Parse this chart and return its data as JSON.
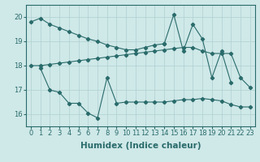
{
  "line1_x": [
    0,
    1,
    2,
    3,
    4,
    5,
    6,
    7,
    8,
    9,
    10,
    11,
    12,
    13,
    14
  ],
  "line1_y": [
    19.8,
    19.95,
    19.7,
    19.55,
    19.4,
    19.25,
    19.1,
    19.0,
    18.85,
    18.75,
    18.65,
    18.65,
    18.75,
    18.85,
    18.9
  ],
  "line2_x": [
    0,
    1,
    2,
    3,
    4,
    5,
    6,
    7,
    8,
    9,
    10,
    11,
    12,
    13,
    14,
    15,
    16,
    17,
    18,
    19,
    20,
    21,
    22,
    23
  ],
  "line2_y": [
    18.0,
    18.0,
    18.05,
    18.1,
    18.15,
    18.2,
    18.25,
    18.3,
    18.35,
    18.4,
    18.45,
    18.5,
    18.55,
    18.6,
    18.65,
    18.7,
    18.75,
    18.75,
    18.6,
    18.5,
    18.5,
    18.5,
    17.5,
    17.1
  ],
  "line3_x": [
    1,
    2,
    3,
    4,
    5,
    6,
    7,
    8,
    9,
    10,
    11,
    12,
    13,
    14,
    15,
    16,
    17,
    18,
    19,
    20,
    21,
    22,
    23
  ],
  "line3_y": [
    17.9,
    17.0,
    16.9,
    16.45,
    16.45,
    16.05,
    15.85,
    17.5,
    16.45,
    16.5,
    16.5,
    16.5,
    16.5,
    16.5,
    16.55,
    16.6,
    16.6,
    16.65,
    16.6,
    16.55,
    16.4,
    16.3,
    16.3
  ],
  "line4_x": [
    14,
    15,
    16,
    17,
    18,
    19,
    20,
    21
  ],
  "line4_y": [
    18.9,
    20.1,
    18.6,
    19.7,
    19.1,
    17.5,
    18.6,
    17.3
  ],
  "xlabel": "Humidex (Indice chaleur)",
  "ylim": [
    15.5,
    20.5
  ],
  "xlim": [
    -0.5,
    23.5
  ],
  "bg_color": "#cfe8e8",
  "grid_color": "#b0d0d0",
  "line_color": "#2a6b6b",
  "tick_fontsize": 6,
  "label_fontsize": 7.5
}
